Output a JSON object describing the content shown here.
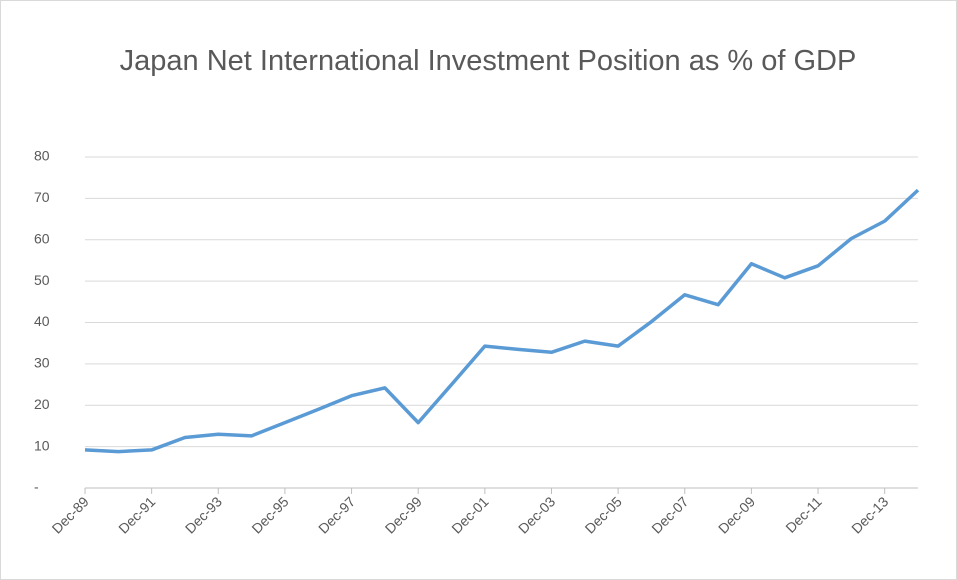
{
  "chart_data": {
    "type": "line",
    "title": "Japan Net International Investment Position as % of GDP",
    "categories": [
      "Dec-89",
      null,
      "Dec-91",
      null,
      "Dec-93",
      null,
      "Dec-95",
      null,
      "Dec-97",
      null,
      "Dec-99",
      null,
      "Dec-01",
      null,
      "Dec-03",
      null,
      "Dec-05",
      null,
      "Dec-07",
      null,
      "Dec-09",
      null,
      "Dec-11",
      null,
      "Dec-13",
      null
    ],
    "values": [
      9.2,
      8.8,
      9.2,
      12.2,
      13,
      12.6,
      15.8,
      19,
      22.3,
      24.2,
      15.8,
      25,
      34.3,
      33.5,
      32.8,
      35.5,
      34.3,
      40.2,
      46.7,
      44.3,
      54.2,
      50.8,
      53.7,
      60.3,
      64.5,
      72
    ],
    "color": "#5b9bd5",
    "ylim": [
      0,
      80
    ],
    "yticks": [
      {
        "value": 0,
        "label": "-"
      },
      10,
      20,
      30,
      40,
      50,
      60,
      70,
      80
    ],
    "grid": true
  }
}
